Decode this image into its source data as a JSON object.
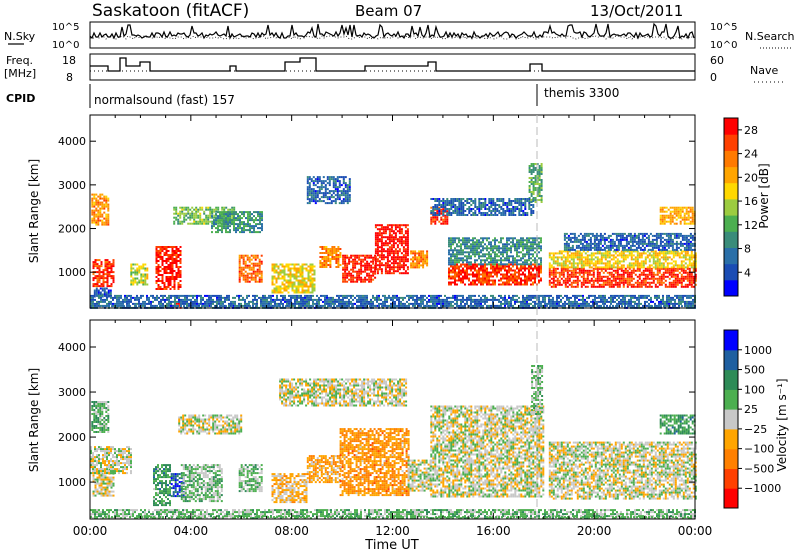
{
  "header": {
    "station": "Saskatoon (fitACF)",
    "beam": "Beam 07",
    "date": "13/Oct/2011"
  },
  "noise_panel": {
    "left_label": "N.Sky",
    "left_ticks": [
      "10^5",
      "10^0"
    ],
    "right_label": "N.Search",
    "right_ticks": [
      "10^5",
      "10^0"
    ]
  },
  "freq_panel": {
    "left_label_1": "Freq.",
    "left_label_2": "[MHz]",
    "left_ticks": [
      "18",
      "8"
    ],
    "right_label": "Nave",
    "right_ticks": [
      "60",
      "0"
    ]
  },
  "cpid_panel": {
    "label": "CPID",
    "mode_1": "normalsound (fast) 157",
    "mode_2": "themis 3300"
  },
  "chart_data": [
    {
      "type": "heatmap",
      "name": "power",
      "xlabel": "",
      "ylabel": "Slant Range [km]",
      "xlim": [
        0,
        24
      ],
      "ylim": [
        180,
        4600
      ],
      "yticks": [
        "1000",
        "2000",
        "3000",
        "4000"
      ],
      "colorbar": {
        "label": "Power [dB]",
        "ticks": [
          "4",
          "8",
          "12",
          "16",
          "20",
          "24",
          "28"
        ],
        "range": [
          0,
          30
        ],
        "colors": [
          "#0000ff",
          "#1a4cb4",
          "#2a6fa8",
          "#3a8c7a",
          "#4caf50",
          "#9ccc40",
          "#ffd800",
          "#ffa500",
          "#ff7a00",
          "#ff4000",
          "#ff0000"
        ]
      },
      "regions": [
        {
          "t0": 0.05,
          "t1": 0.7,
          "r0": 2100,
          "r1": 2800,
          "v": 22
        },
        {
          "t0": 0.1,
          "t1": 0.9,
          "r0": 700,
          "r1": 1300,
          "v": 27
        },
        {
          "t0": 0.15,
          "t1": 0.8,
          "r0": 450,
          "r1": 650,
          "v": 5
        },
        {
          "t0": 1.6,
          "t1": 2.3,
          "r0": 700,
          "r1": 1200,
          "v": 16
        },
        {
          "t0": 2.6,
          "t1": 3.6,
          "r0": 600,
          "r1": 1600,
          "v": 28
        },
        {
          "t0": 3.0,
          "t1": 3.6,
          "r0": 180,
          "r1": 300,
          "v": 28
        },
        {
          "t0": 3.3,
          "t1": 5.7,
          "r0": 2100,
          "r1": 2500,
          "v": 13
        },
        {
          "t0": 4.8,
          "t1": 6.8,
          "r0": 1900,
          "r1": 2400,
          "v": 10
        },
        {
          "t0": 5.9,
          "t1": 6.8,
          "r0": 800,
          "r1": 1400,
          "v": 24
        },
        {
          "t0": 7.2,
          "t1": 8.9,
          "r0": 550,
          "r1": 1200,
          "v": 18
        },
        {
          "t0": 9.1,
          "t1": 9.9,
          "r0": 1100,
          "r1": 1600,
          "v": 22
        },
        {
          "t0": 10.0,
          "t1": 11.3,
          "r0": 800,
          "r1": 1400,
          "v": 28
        },
        {
          "t0": 11.3,
          "t1": 12.6,
          "r0": 1000,
          "r1": 2100,
          "v": 29
        },
        {
          "t0": 12.7,
          "t1": 13.4,
          "r0": 1100,
          "r1": 1500,
          "v": 22
        },
        {
          "t0": 8.6,
          "t1": 10.3,
          "r0": 2600,
          "r1": 3200,
          "v": 6
        },
        {
          "t0": 13.5,
          "t1": 14.2,
          "r0": 2100,
          "r1": 2500,
          "v": 27
        },
        {
          "t0": 14.2,
          "t1": 17.9,
          "r0": 700,
          "r1": 1200,
          "v": 27
        },
        {
          "t0": 14.2,
          "t1": 17.9,
          "r0": 1200,
          "r1": 1800,
          "v": 9
        },
        {
          "t0": 17.4,
          "t1": 17.9,
          "r0": 2600,
          "r1": 3500,
          "v": 12
        },
        {
          "t0": 18.2,
          "t1": 24.0,
          "r0": 650,
          "r1": 1100,
          "v": 27
        },
        {
          "t0": 18.2,
          "t1": 24.0,
          "r0": 1100,
          "r1": 1500,
          "v": 18
        },
        {
          "t0": 18.8,
          "t1": 24.0,
          "r0": 1500,
          "r1": 1900,
          "v": 6
        },
        {
          "t0": 22.6,
          "t1": 24.0,
          "r0": 2100,
          "r1": 2500,
          "v": 20
        },
        {
          "t0": 13.5,
          "t1": 17.6,
          "r0": 2300,
          "r1": 2700,
          "v": 6
        },
        {
          "t0": 0.0,
          "t1": 24.0,
          "r0": 200,
          "r1": 480,
          "v": 6
        }
      ]
    },
    {
      "type": "heatmap",
      "name": "velocity",
      "xlabel": "Time UT",
      "ylabel": "Slant Range [km]",
      "xlim": [
        0,
        24
      ],
      "ylim": [
        180,
        4600
      ],
      "yticks": [
        "1000",
        "2000",
        "3000",
        "4000"
      ],
      "xticks": [
        "00:00",
        "04:00",
        "08:00",
        "12:00",
        "16:00",
        "20:00",
        "00:00"
      ],
      "colorbar": {
        "label": "Velocity [m s⁻¹]",
        "ticks": [
          "1000",
          "500",
          "100",
          "25",
          "−25",
          "−100",
          "−500",
          "−1000"
        ],
        "range": [
          -1200,
          1200
        ],
        "colors": [
          "#ff0000",
          "#ff4000",
          "#ff8000",
          "#ffa500",
          "#c8c8c8",
          "#4caf50",
          "#2e8b57",
          "#1e5fa0",
          "#0000ff"
        ]
      },
      "regions": [
        {
          "t0": 0.05,
          "t1": 0.7,
          "r0": 2100,
          "r1": 2800,
          "v": 300
        },
        {
          "t0": 0.1,
          "t1": 0.9,
          "r0": 700,
          "r1": 1300,
          "v": 0
        },
        {
          "t0": 0.0,
          "t1": 1.6,
          "r0": 1200,
          "r1": 1800,
          "v": 0
        },
        {
          "t0": 2.5,
          "t1": 3.2,
          "r0": 500,
          "r1": 1400,
          "v": 400
        },
        {
          "t0": 3.2,
          "t1": 3.7,
          "r0": 700,
          "r1": 1200,
          "v": 900
        },
        {
          "t0": 3.6,
          "t1": 5.2,
          "r0": 600,
          "r1": 1400,
          "v": 200
        },
        {
          "t0": 3.5,
          "t1": 6.0,
          "r0": 2100,
          "r1": 2500,
          "v": 0
        },
        {
          "t0": 5.9,
          "t1": 6.8,
          "r0": 800,
          "r1": 1400,
          "v": 200
        },
        {
          "t0": 7.2,
          "t1": 8.6,
          "r0": 550,
          "r1": 1200,
          "v": -200
        },
        {
          "t0": 8.6,
          "t1": 9.9,
          "r0": 1000,
          "r1": 1600,
          "v": -300
        },
        {
          "t0": 9.9,
          "t1": 12.6,
          "r0": 700,
          "r1": 2200,
          "v": -400
        },
        {
          "t0": 12.6,
          "t1": 13.5,
          "r0": 800,
          "r1": 1500,
          "v": 0
        },
        {
          "t0": 13.5,
          "t1": 18.0,
          "r0": 700,
          "r1": 2700,
          "v": 0
        },
        {
          "t0": 18.2,
          "t1": 24.0,
          "r0": 650,
          "r1": 1900,
          "v": 0
        },
        {
          "t0": 17.5,
          "t1": 17.9,
          "r0": 2500,
          "r1": 3600,
          "v": 200
        },
        {
          "t0": 22.6,
          "t1": 24.0,
          "r0": 2100,
          "r1": 2500,
          "v": 400
        },
        {
          "t0": 0.0,
          "t1": 24.0,
          "r0": 200,
          "r1": 400,
          "v": 200
        },
        {
          "t0": 7.5,
          "t1": 12.5,
          "r0": 2700,
          "r1": 3300,
          "v": 0
        }
      ]
    }
  ]
}
